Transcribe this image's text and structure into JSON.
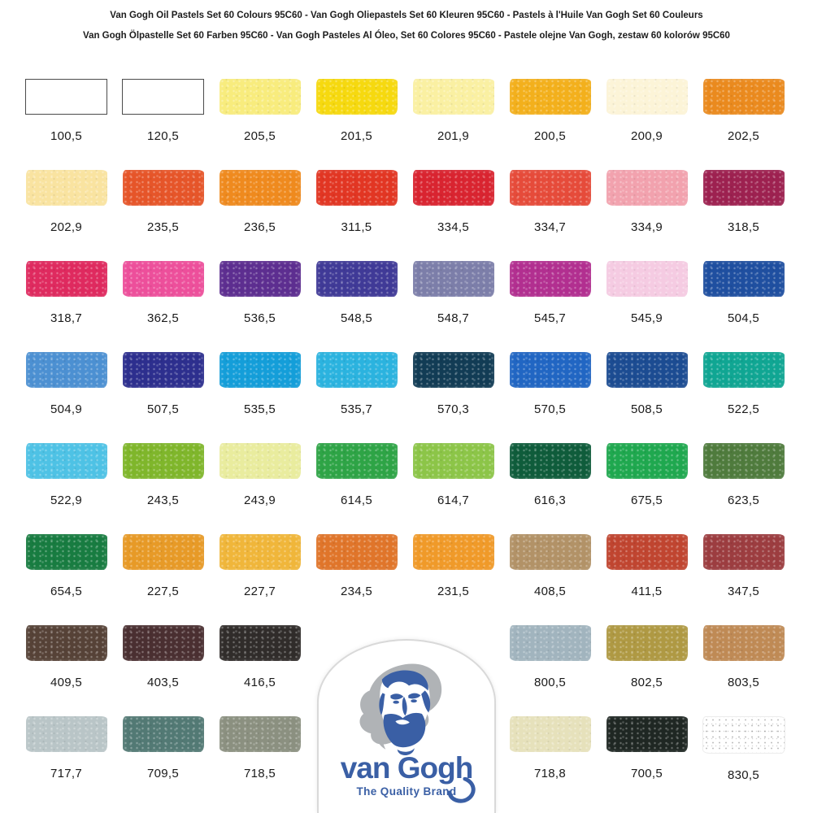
{
  "title": {
    "line1": "Van Gogh Oil Pastels Set 60 Colours 95C60 - Van Gogh Oliepastels Set 60 Kleuren 95C60 - Pastels à l'Huile Van Gogh Set 60 Couleurs",
    "line2": "Van Gogh Ölpastelle Set 60 Farben 95C60 - Van Gogh Pasteles Al Óleo, Set 60 Colores 95C60 - Pastele olejne Van Gogh, zestaw 60 kolorów 95C60"
  },
  "rows": [
    [
      {
        "code": "100,5",
        "color": "#ffffff",
        "variant": "outlined"
      },
      {
        "code": "120,5",
        "color": "#ffffff",
        "variant": "outlined"
      },
      {
        "code": "205,5",
        "color": "#f8ec7d"
      },
      {
        "code": "201,5",
        "color": "#f6d90f"
      },
      {
        "code": "201,9",
        "color": "#faf0a2"
      },
      {
        "code": "200,5",
        "color": "#f3b01c"
      },
      {
        "code": "200,9",
        "color": "#fcf4d7"
      },
      {
        "code": "202,5",
        "color": "#ea8a1e"
      }
    ],
    [
      {
        "code": "202,9",
        "color": "#f9e3a0"
      },
      {
        "code": "235,5",
        "color": "#e65529"
      },
      {
        "code": "236,5",
        "color": "#ef8a1e"
      },
      {
        "code": "311,5",
        "color": "#e23623"
      },
      {
        "code": "334,5",
        "color": "#d92430"
      },
      {
        "code": "334,7",
        "color": "#e64b3a"
      },
      {
        "code": "334,9",
        "color": "#f2a2ae"
      },
      {
        "code": "318,5",
        "color": "#9d2150"
      }
    ],
    [
      {
        "code": "318,7",
        "color": "#df2a5f"
      },
      {
        "code": "362,5",
        "color": "#ed4f9b"
      },
      {
        "code": "536,5",
        "color": "#5d2e90"
      },
      {
        "code": "548,5",
        "color": "#403a97"
      },
      {
        "code": "548,7",
        "color": "#7c7ea9"
      },
      {
        "code": "545,7",
        "color": "#b22f90"
      },
      {
        "code": "545,9",
        "color": "#f5cbe2"
      },
      {
        "code": "504,5",
        "color": "#1f4fa0"
      }
    ],
    [
      {
        "code": "504,9",
        "color": "#4c90d2"
      },
      {
        "code": "507,5",
        "color": "#2d2f8e"
      },
      {
        "code": "535,5",
        "color": "#149ed9"
      },
      {
        "code": "535,7",
        "color": "#2bb3df"
      },
      {
        "code": "570,3",
        "color": "#123c55"
      },
      {
        "code": "570,5",
        "color": "#2166c3"
      },
      {
        "code": "508,5",
        "color": "#1c4c92"
      },
      {
        "code": "522,5",
        "color": "#10a693"
      }
    ],
    [
      {
        "code": "522,9",
        "color": "#4ec2e5"
      },
      {
        "code": "243,5",
        "color": "#7fb62b"
      },
      {
        "code": "243,9",
        "color": "#e9ec9e"
      },
      {
        "code": "614,5",
        "color": "#2ea446"
      },
      {
        "code": "614,7",
        "color": "#8cc548"
      },
      {
        "code": "616,3",
        "color": "#0f5c3b"
      },
      {
        "code": "675,5",
        "color": "#1fa84f"
      },
      {
        "code": "623,5",
        "color": "#4f7b3d"
      }
    ],
    [
      {
        "code": "654,5",
        "color": "#187c41"
      },
      {
        "code": "227,5",
        "color": "#e79a27"
      },
      {
        "code": "227,7",
        "color": "#f0b63a"
      },
      {
        "code": "234,5",
        "color": "#e0752a"
      },
      {
        "code": "231,5",
        "color": "#f09a29"
      },
      {
        "code": "408,5",
        "color": "#b29267"
      },
      {
        "code": "411,5",
        "color": "#c04530"
      },
      {
        "code": "347,5",
        "color": "#9c3d40"
      }
    ],
    [
      {
        "code": "409,5",
        "color": "#564237"
      },
      {
        "code": "403,5",
        "color": "#4a2f31"
      },
      {
        "code": "416,5",
        "color": "#302c2a"
      },
      null,
      null,
      {
        "code": "800,5",
        "color": "#a1b4be"
      },
      {
        "code": "802,5",
        "color": "#af9943"
      },
      {
        "code": "803,5",
        "color": "#bf8a55"
      }
    ],
    [
      {
        "code": "717,7",
        "color": "#b9c5c7"
      },
      {
        "code": "709,5",
        "color": "#527974"
      },
      {
        "code": "718,5",
        "color": "#8b9080"
      },
      null,
      null,
      {
        "code": "718,8",
        "color": "#e6e1bb"
      },
      {
        "code": "700,5",
        "color": "#1f2723"
      },
      {
        "code": "830,5",
        "color": "#ffffff",
        "variant": "speckled"
      }
    ]
  ],
  "logo": {
    "brand": "van Gogh",
    "tagline": "The Quality Brand",
    "blue": "#3a5fa5",
    "gray": "#b0b3b6"
  }
}
